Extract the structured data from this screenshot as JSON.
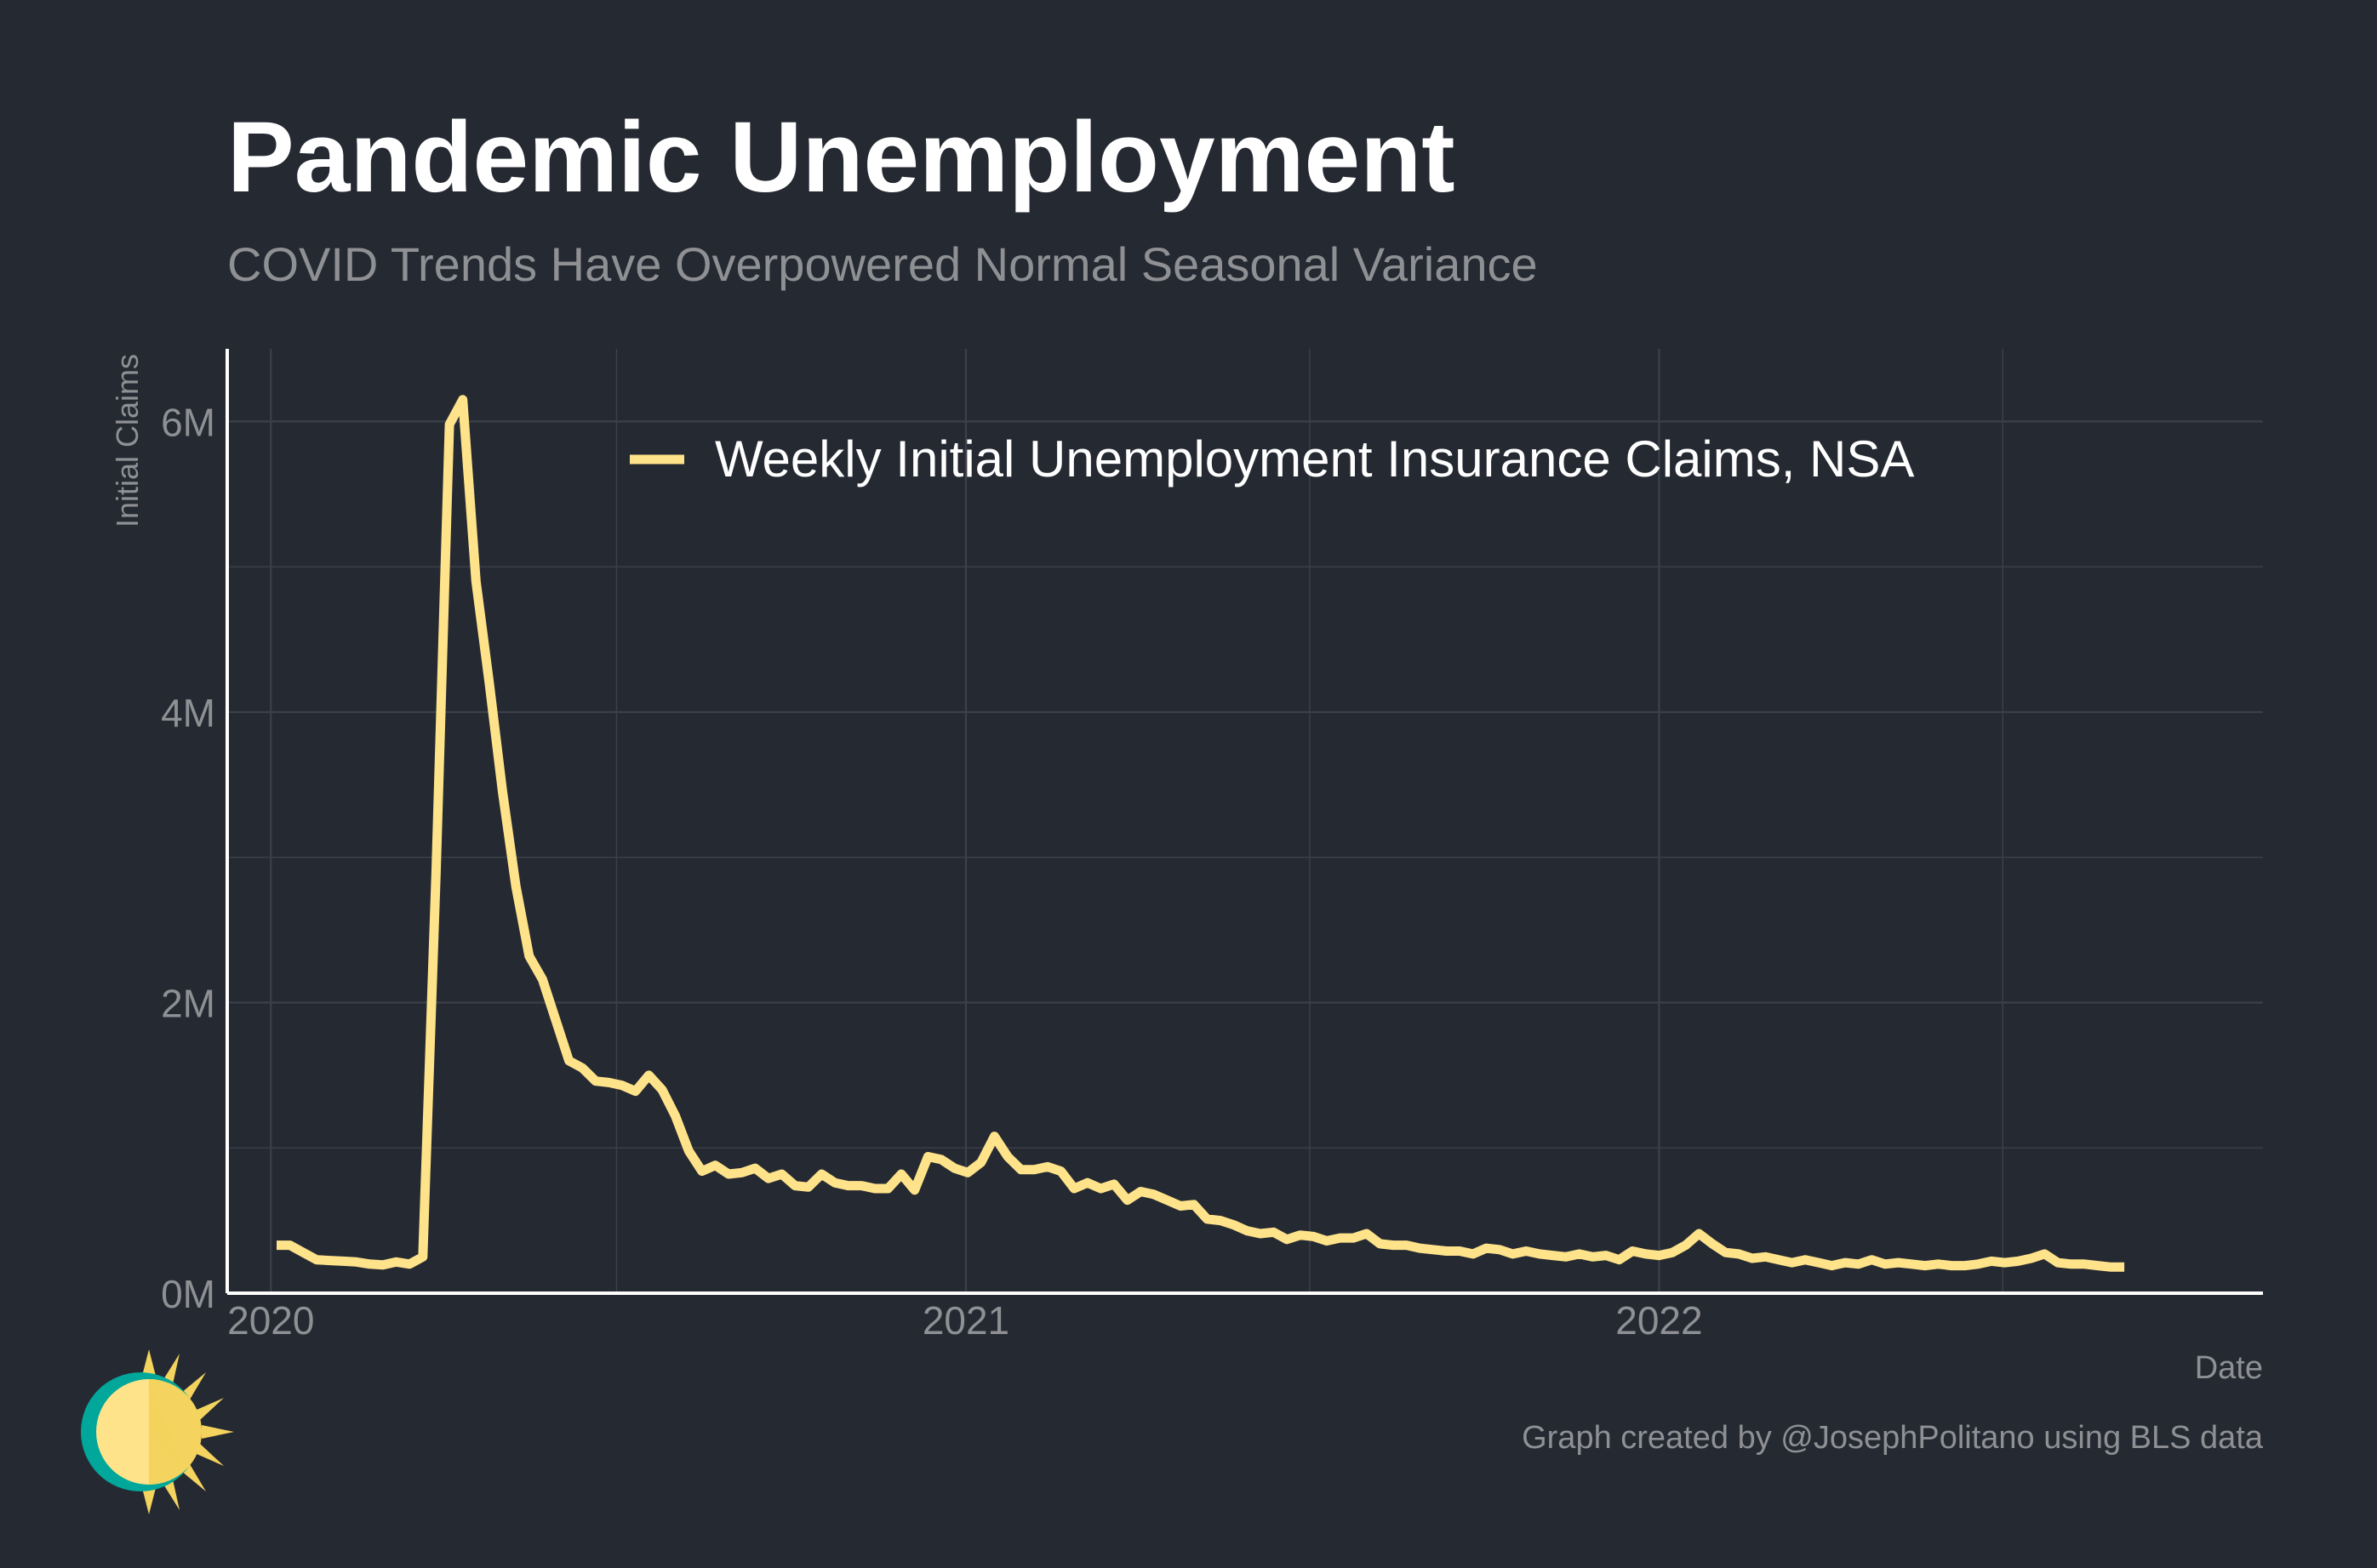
{
  "colors": {
    "background": "#252932",
    "grid": "#3c4049",
    "axis": "#ffffff",
    "series": "#fee38a",
    "text_muted": "#8e9094",
    "logo_teal": "#00a79a",
    "logo_sun": "#f4d35e",
    "logo_face": "#fee38a"
  },
  "chart_data": {
    "type": "line",
    "title": "Pandemic Unemployment",
    "subtitle": "COVID Trends Have Overpowered Normal Seasonal Variance",
    "xlabel": "Date",
    "ylabel": "Initial Claims",
    "caption": "Graph created by @JosephPolitano using BLS data",
    "x_ticks": [
      "2020",
      "2021",
      "2022"
    ],
    "y_ticks": [
      "0M",
      "2M",
      "4M",
      "6M"
    ],
    "ylim": [
      0,
      6500000
    ],
    "xlim": [
      "2019-12-09",
      "2022-11-15"
    ],
    "grid": true,
    "legend_position": "top-center",
    "series": [
      {
        "name": "Weekly Initial Unemployment Insurance Claims, NSA",
        "color": "#fee38a",
        "points": [
          [
            "2020-01-04",
            330000
          ],
          [
            "2020-01-11",
            330000
          ],
          [
            "2020-01-18",
            280000
          ],
          [
            "2020-01-25",
            230000
          ],
          [
            "2020-02-01",
            225000
          ],
          [
            "2020-02-08",
            220000
          ],
          [
            "2020-02-15",
            215000
          ],
          [
            "2020-02-22",
            200000
          ],
          [
            "2020-02-29",
            195000
          ],
          [
            "2020-03-07",
            215000
          ],
          [
            "2020-03-14",
            200000
          ],
          [
            "2020-03-21",
            250000
          ],
          [
            "2020-03-28",
            2900000
          ],
          [
            "2020-04-04",
            5980000
          ],
          [
            "2020-04-11",
            6150000
          ],
          [
            "2020-04-18",
            4900000
          ],
          [
            "2020-04-25",
            4200000
          ],
          [
            "2020-05-02",
            3450000
          ],
          [
            "2020-05-09",
            2800000
          ],
          [
            "2020-05-16",
            2320000
          ],
          [
            "2020-05-23",
            2160000
          ],
          [
            "2020-05-30",
            1880000
          ],
          [
            "2020-06-06",
            1600000
          ],
          [
            "2020-06-13",
            1550000
          ],
          [
            "2020-06-20",
            1460000
          ],
          [
            "2020-06-27",
            1450000
          ],
          [
            "2020-07-04",
            1430000
          ],
          [
            "2020-07-11",
            1390000
          ],
          [
            "2020-07-18",
            1500000
          ],
          [
            "2020-07-25",
            1400000
          ],
          [
            "2020-08-01",
            1220000
          ],
          [
            "2020-08-08",
            980000
          ],
          [
            "2020-08-15",
            840000
          ],
          [
            "2020-08-22",
            880000
          ],
          [
            "2020-08-29",
            820000
          ],
          [
            "2020-09-05",
            830000
          ],
          [
            "2020-09-12",
            860000
          ],
          [
            "2020-09-19",
            790000
          ],
          [
            "2020-09-26",
            820000
          ],
          [
            "2020-10-03",
            740000
          ],
          [
            "2020-10-10",
            730000
          ],
          [
            "2020-10-17",
            820000
          ],
          [
            "2020-10-24",
            760000
          ],
          [
            "2020-10-31",
            740000
          ],
          [
            "2020-11-07",
            740000
          ],
          [
            "2020-11-14",
            720000
          ],
          [
            "2020-11-21",
            720000
          ],
          [
            "2020-11-28",
            820000
          ],
          [
            "2020-12-05",
            710000
          ],
          [
            "2020-12-12",
            940000
          ],
          [
            "2020-12-19",
            920000
          ],
          [
            "2020-12-26",
            860000
          ],
          [
            "2021-01-02",
            830000
          ],
          [
            "2021-01-09",
            900000
          ],
          [
            "2021-01-16",
            1080000
          ],
          [
            "2021-01-23",
            940000
          ],
          [
            "2021-01-30",
            850000
          ],
          [
            "2021-02-06",
            850000
          ],
          [
            "2021-02-13",
            870000
          ],
          [
            "2021-02-20",
            840000
          ],
          [
            "2021-02-27",
            720000
          ],
          [
            "2021-03-06",
            760000
          ],
          [
            "2021-03-13",
            720000
          ],
          [
            "2021-03-20",
            750000
          ],
          [
            "2021-03-27",
            640000
          ],
          [
            "2021-04-03",
            700000
          ],
          [
            "2021-04-10",
            680000
          ],
          [
            "2021-04-17",
            640000
          ],
          [
            "2021-04-24",
            600000
          ],
          [
            "2021-05-01",
            610000
          ],
          [
            "2021-05-08",
            510000
          ],
          [
            "2021-05-15",
            500000
          ],
          [
            "2021-05-22",
            470000
          ],
          [
            "2021-05-29",
            430000
          ],
          [
            "2021-06-05",
            410000
          ],
          [
            "2021-06-12",
            420000
          ],
          [
            "2021-06-19",
            370000
          ],
          [
            "2021-06-26",
            400000
          ],
          [
            "2021-07-03",
            390000
          ],
          [
            "2021-07-10",
            360000
          ],
          [
            "2021-07-17",
            380000
          ],
          [
            "2021-07-24",
            380000
          ],
          [
            "2021-07-31",
            410000
          ],
          [
            "2021-08-07",
            340000
          ],
          [
            "2021-08-14",
            330000
          ],
          [
            "2021-08-21",
            330000
          ],
          [
            "2021-08-28",
            310000
          ],
          [
            "2021-09-04",
            300000
          ],
          [
            "2021-09-11",
            290000
          ],
          [
            "2021-09-18",
            290000
          ],
          [
            "2021-09-25",
            270000
          ],
          [
            "2021-10-02",
            310000
          ],
          [
            "2021-10-09",
            300000
          ],
          [
            "2021-10-16",
            270000
          ],
          [
            "2021-10-23",
            290000
          ],
          [
            "2021-10-30",
            270000
          ],
          [
            "2021-11-06",
            260000
          ],
          [
            "2021-11-13",
            250000
          ],
          [
            "2021-11-20",
            270000
          ],
          [
            "2021-11-27",
            250000
          ],
          [
            "2021-12-04",
            260000
          ],
          [
            "2021-12-11",
            230000
          ],
          [
            "2021-12-18",
            290000
          ],
          [
            "2021-12-25",
            270000
          ],
          [
            "2022-01-01",
            260000
          ],
          [
            "2022-01-08",
            280000
          ],
          [
            "2022-01-15",
            330000
          ],
          [
            "2022-01-22",
            410000
          ],
          [
            "2022-01-29",
            340000
          ],
          [
            "2022-02-05",
            280000
          ],
          [
            "2022-02-12",
            270000
          ],
          [
            "2022-02-19",
            240000
          ],
          [
            "2022-02-26",
            250000
          ],
          [
            "2022-03-05",
            230000
          ],
          [
            "2022-03-12",
            210000
          ],
          [
            "2022-03-19",
            230000
          ],
          [
            "2022-03-26",
            210000
          ],
          [
            "2022-04-02",
            190000
          ],
          [
            "2022-04-09",
            210000
          ],
          [
            "2022-04-16",
            200000
          ],
          [
            "2022-04-23",
            230000
          ],
          [
            "2022-04-30",
            200000
          ],
          [
            "2022-05-07",
            210000
          ],
          [
            "2022-05-14",
            200000
          ],
          [
            "2022-05-21",
            190000
          ],
          [
            "2022-05-28",
            200000
          ],
          [
            "2022-06-04",
            190000
          ],
          [
            "2022-06-11",
            190000
          ],
          [
            "2022-06-18",
            200000
          ],
          [
            "2022-06-25",
            220000
          ],
          [
            "2022-07-02",
            210000
          ],
          [
            "2022-07-09",
            220000
          ],
          [
            "2022-07-16",
            240000
          ],
          [
            "2022-07-23",
            270000
          ],
          [
            "2022-07-30",
            210000
          ],
          [
            "2022-08-06",
            200000
          ],
          [
            "2022-08-13",
            200000
          ],
          [
            "2022-08-20",
            190000
          ],
          [
            "2022-08-27",
            180000
          ],
          [
            "2022-09-03",
            180000
          ]
        ]
      }
    ]
  }
}
